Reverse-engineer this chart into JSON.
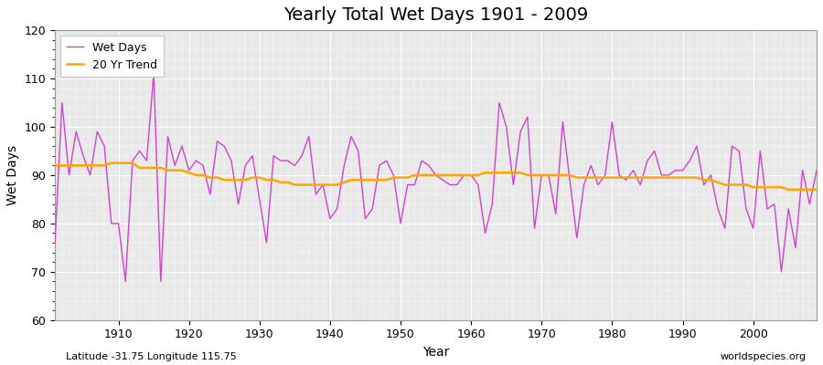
{
  "title": "Yearly Total Wet Days 1901 - 2009",
  "xlabel": "Year",
  "ylabel": "Wet Days",
  "subtitle": "Latitude -31.75 Longitude 115.75",
  "watermark": "worldspecies.org",
  "ylim": [
    60,
    120
  ],
  "yticks": [
    60,
    70,
    80,
    90,
    100,
    110,
    120
  ],
  "wet_days_color": "#cc44cc",
  "trend_color": "#FFA500",
  "background_color": "#ffffff",
  "plot_bg_color": "#e8e8e8",
  "wet_days": {
    "1901": 76,
    "1902": 105,
    "1903": 90,
    "1904": 99,
    "1905": 94,
    "1906": 90,
    "1907": 99,
    "1908": 96,
    "1909": 80,
    "1910": 80,
    "1911": 68,
    "1912": 93,
    "1913": 95,
    "1914": 93,
    "1915": 111,
    "1916": 68,
    "1917": 98,
    "1918": 92,
    "1919": 96,
    "1920": 91,
    "1921": 93,
    "1922": 92,
    "1923": 86,
    "1924": 97,
    "1925": 96,
    "1926": 93,
    "1927": 84,
    "1928": 92,
    "1929": 94,
    "1930": 85,
    "1931": 76,
    "1932": 94,
    "1933": 93,
    "1934": 93,
    "1935": 92,
    "1936": 94,
    "1937": 98,
    "1938": 86,
    "1939": 88,
    "1940": 81,
    "1941": 83,
    "1942": 92,
    "1943": 98,
    "1944": 95,
    "1945": 81,
    "1946": 83,
    "1947": 92,
    "1948": 93,
    "1949": 90,
    "1950": 80,
    "1951": 88,
    "1952": 88,
    "1953": 93,
    "1954": 92,
    "1955": 90,
    "1956": 89,
    "1957": 88,
    "1958": 88,
    "1959": 90,
    "1960": 90,
    "1961": 88,
    "1962": 78,
    "1963": 84,
    "1964": 105,
    "1965": 100,
    "1966": 88,
    "1967": 99,
    "1968": 102,
    "1969": 79,
    "1970": 90,
    "1971": 90,
    "1972": 82,
    "1973": 101,
    "1974": 89,
    "1975": 77,
    "1976": 88,
    "1977": 92,
    "1978": 88,
    "1979": 90,
    "1980": 101,
    "1981": 90,
    "1982": 89,
    "1983": 91,
    "1984": 88,
    "1985": 93,
    "1986": 95,
    "1987": 90,
    "1988": 90,
    "1989": 91,
    "1990": 91,
    "1991": 93,
    "1992": 96,
    "1993": 88,
    "1994": 90,
    "1995": 83,
    "1996": 79,
    "1997": 96,
    "1998": 95,
    "1999": 83,
    "2000": 79,
    "2001": 95,
    "2002": 83,
    "2003": 84,
    "2004": 70,
    "2005": 83,
    "2006": 75,
    "2007": 91,
    "2008": 84,
    "2009": 91
  },
  "trend_20yr": {
    "1901": 92,
    "1902": 92,
    "1903": 92,
    "1904": 92,
    "1905": 92,
    "1906": 92,
    "1907": 92,
    "1908": 92,
    "1909": 92.5,
    "1910": 92.5,
    "1911": 92.5,
    "1912": 92.5,
    "1913": 91.5,
    "1914": 91.5,
    "1915": 91.5,
    "1916": 91.5,
    "1917": 91,
    "1918": 91,
    "1919": 91,
    "1920": 90.5,
    "1921": 90,
    "1922": 90,
    "1923": 89.5,
    "1924": 89.5,
    "1925": 89,
    "1926": 89,
    "1927": 89,
    "1928": 89,
    "1929": 89.5,
    "1930": 89.5,
    "1931": 89,
    "1932": 89,
    "1933": 88.5,
    "1934": 88.5,
    "1935": 88,
    "1936": 88,
    "1937": 88,
    "1938": 88,
    "1939": 88,
    "1940": 88,
    "1941": 88,
    "1942": 88.5,
    "1943": 89,
    "1944": 89,
    "1945": 89,
    "1946": 89,
    "1947": 89,
    "1948": 89,
    "1949": 89.5,
    "1950": 89.5,
    "1951": 89.5,
    "1952": 90,
    "1953": 90,
    "1954": 90,
    "1955": 90,
    "1956": 90,
    "1957": 90,
    "1958": 90,
    "1959": 90,
    "1960": 90,
    "1961": 90,
    "1962": 90.5,
    "1963": 90.5,
    "1964": 90.5,
    "1965": 90.5,
    "1966": 90.5,
    "1967": 90.5,
    "1968": 90,
    "1969": 90,
    "1970": 90,
    "1971": 90,
    "1972": 90,
    "1973": 90,
    "1974": 90,
    "1975": 89.5,
    "1976": 89.5,
    "1977": 89.5,
    "1978": 89.5,
    "1979": 89.5,
    "1980": 89.5,
    "1981": 89.5,
    "1982": 89.5,
    "1983": 89.5,
    "1984": 89.5,
    "1985": 89.5,
    "1986": 89.5,
    "1987": 89.5,
    "1988": 89.5,
    "1989": 89.5,
    "1990": 89.5,
    "1991": 89.5,
    "1992": 89.5,
    "1993": 89,
    "1994": 89,
    "1995": 88.5,
    "1996": 88,
    "1997": 88,
    "1998": 88,
    "1999": 88,
    "2000": 87.5,
    "2001": 87.5,
    "2002": 87.5,
    "2003": 87.5,
    "2004": 87.5,
    "2005": 87,
    "2006": 87,
    "2007": 87,
    "2008": 87,
    "2009": 87
  }
}
